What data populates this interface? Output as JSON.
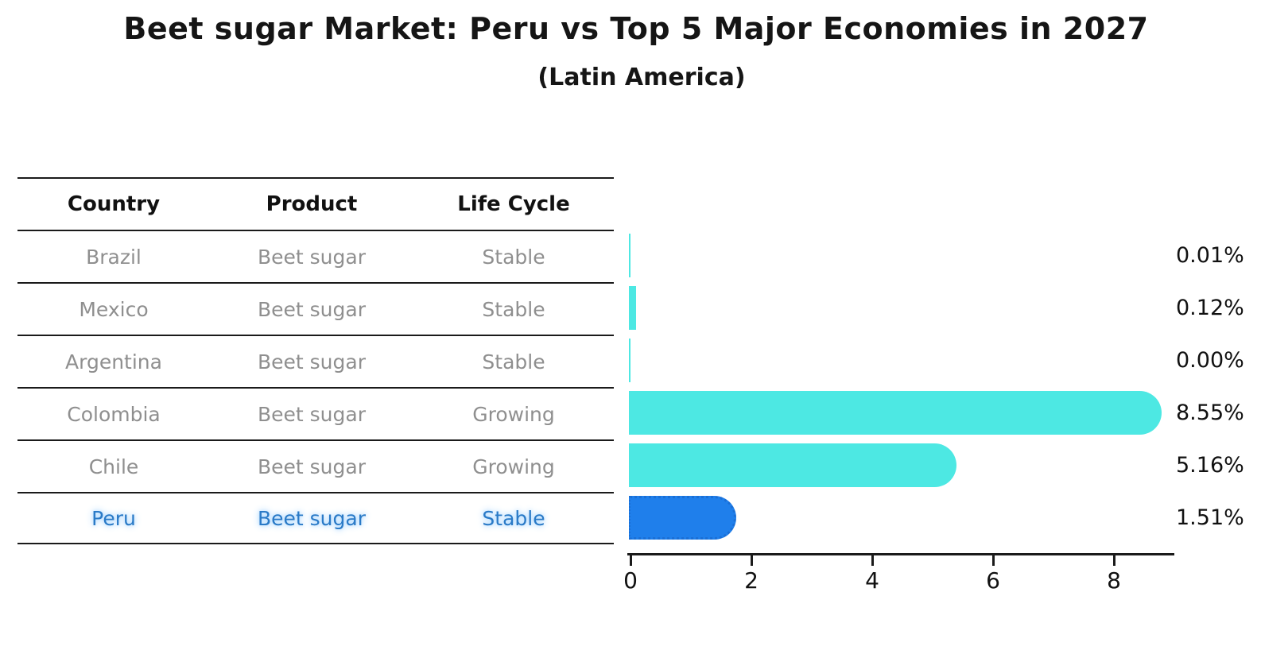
{
  "chart_data": {
    "type": "bar",
    "orientation": "horizontal",
    "title": "Beet sugar Market: Peru vs Top 5 Major Economies in 2027",
    "subtitle": "(Latin America)",
    "categories": [
      "Brazil",
      "Mexico",
      "Argentina",
      "Colombia",
      "Chile",
      "Peru"
    ],
    "values": [
      0.01,
      0.12,
      0.0,
      8.55,
      5.16,
      1.51
    ],
    "value_labels": [
      "0.01%",
      "0.12%",
      "0.00%",
      "8.55%",
      "5.16%",
      "1.51%"
    ],
    "highlight_category": "Peru",
    "xlim": [
      0,
      9
    ],
    "xticks": [
      "0",
      "2",
      "4",
      "6",
      "8"
    ],
    "grid": "off",
    "legend": "none"
  },
  "table": {
    "headers": [
      "Country",
      "Product",
      "Life Cycle"
    ],
    "rows": [
      {
        "country": "Brazil",
        "product": "Beet sugar",
        "life_cycle": "Stable",
        "highlighted": false
      },
      {
        "country": "Mexico",
        "product": "Beet sugar",
        "life_cycle": "Stable",
        "highlighted": false
      },
      {
        "country": "Argentina",
        "product": "Beet sugar",
        "life_cycle": "Stable",
        "highlighted": false
      },
      {
        "country": "Colombia",
        "product": "Beet sugar",
        "life_cycle": "Growing",
        "highlighted": false
      },
      {
        "country": "Chile",
        "product": "Beet sugar",
        "life_cycle": "Growing",
        "highlighted": false
      },
      {
        "country": "Peru",
        "product": "Beet sugar",
        "life_cycle": "Stable",
        "highlighted": true
      }
    ]
  },
  "colors": {
    "bar_teal": "#4DE8E3",
    "bar_blue": "#1F7FEB",
    "bar_blue_border": "#1A6FD6",
    "highlight_text": "#2A7AC7",
    "row_text": "#8F8F8F",
    "header_text": "#111111"
  }
}
